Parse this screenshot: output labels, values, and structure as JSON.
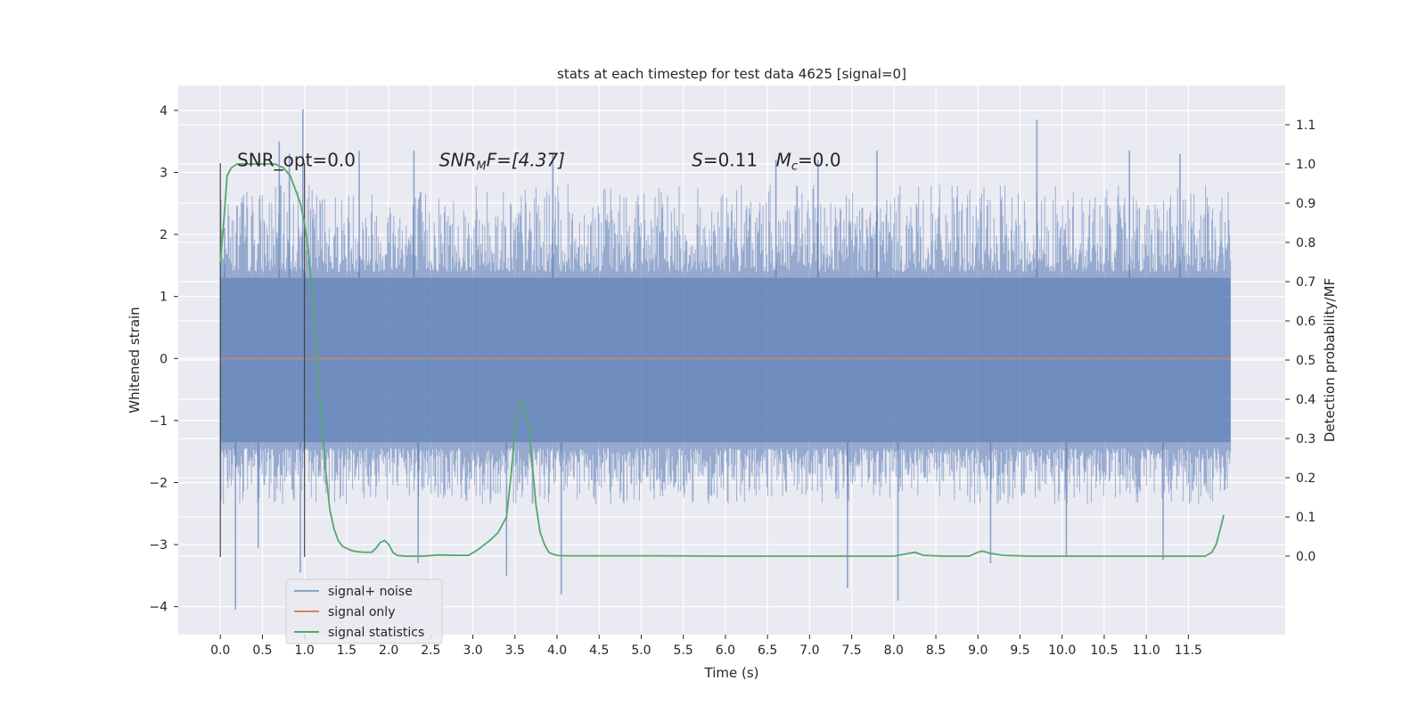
{
  "chart_data": {
    "type": "line",
    "title": "stats at each timestep for test data 4625 [signal=0]",
    "xlabel": "Time (s)",
    "ylabel": "Whitened strain",
    "y2label": "Detection probability/MF",
    "xlim": [
      -0.5,
      12.65
    ],
    "ylim": [
      -4.45,
      4.4
    ],
    "y2lim": [
      -0.2,
      1.2
    ],
    "x_ticks": [
      "0.0",
      "0.5",
      "1.0",
      "1.5",
      "2.0",
      "2.5",
      "3.0",
      "3.5",
      "4.0",
      "4.5",
      "5.0",
      "5.5",
      "6.0",
      "6.5",
      "7.0",
      "7.5",
      "8.0",
      "8.5",
      "9.0",
      "9.5",
      "10.0",
      "10.5",
      "11.0",
      "11.5"
    ],
    "y_ticks": [
      "−4",
      "−3",
      "−2",
      "−1",
      "0",
      "1",
      "2",
      "3",
      "4"
    ],
    "y2_ticks": [
      "0.0",
      "0.1",
      "0.2",
      "0.3",
      "0.4",
      "0.5",
      "0.6",
      "0.7",
      "0.8",
      "0.9",
      "1.0",
      "1.1"
    ],
    "grid": true,
    "legend_position": "lower-left",
    "vlines": [
      {
        "x": 0.0,
        "ymin": -3.2,
        "ymax": 3.15
      },
      {
        "x": 1.0,
        "ymin": -3.2,
        "ymax": 3.15
      }
    ],
    "noise_band": {
      "x_start": 0.0,
      "x_end": 12.0,
      "core_low": -1.35,
      "core_high": 1.3,
      "typical_peak": 2.3,
      "max_peak": 4.0,
      "min_peak": -4.05
    },
    "noise_spikes": [
      {
        "x": 0.05,
        "y": 2.1
      },
      {
        "x": 0.7,
        "y": 3.5
      },
      {
        "x": 0.82,
        "y": 3.3
      },
      {
        "x": 0.98,
        "y": 4.02
      },
      {
        "x": 1.65,
        "y": 3.35
      },
      {
        "x": 2.3,
        "y": 3.35
      },
      {
        "x": 3.95,
        "y": 3.3
      },
      {
        "x": 6.6,
        "y": 3.2
      },
      {
        "x": 7.1,
        "y": 3.2
      },
      {
        "x": 7.8,
        "y": 3.35
      },
      {
        "x": 9.7,
        "y": 3.85
      },
      {
        "x": 10.8,
        "y": 3.35
      },
      {
        "x": 11.4,
        "y": 3.3
      },
      {
        "x": 0.18,
        "y": -4.05
      },
      {
        "x": 0.45,
        "y": -3.05
      },
      {
        "x": 0.95,
        "y": -3.45
      },
      {
        "x": 2.35,
        "y": -3.3
      },
      {
        "x": 3.4,
        "y": -3.5
      },
      {
        "x": 4.05,
        "y": -3.8
      },
      {
        "x": 7.45,
        "y": -3.7
      },
      {
        "x": 8.05,
        "y": -3.9
      },
      {
        "x": 9.15,
        "y": -3.3
      },
      {
        "x": 10.05,
        "y": -3.2
      },
      {
        "x": 11.2,
        "y": -3.25
      }
    ],
    "series": [
      {
        "name": "signal+ noise",
        "color": "#4c72b0",
        "opacity": 0.5
      },
      {
        "name": "signal only",
        "color": "#dd8452",
        "x": [
          0.0,
          12.0
        ],
        "y": [
          0.0,
          0.0
        ]
      },
      {
        "name": "signal statistics",
        "color": "#55a868",
        "axis": "right",
        "x": [
          0.0,
          0.04,
          0.08,
          0.13,
          0.2,
          0.3,
          0.5,
          0.65,
          0.75,
          0.83,
          0.9,
          0.95,
          1.0,
          1.05,
          1.1,
          1.15,
          1.2,
          1.25,
          1.3,
          1.35,
          1.4,
          1.45,
          1.5,
          1.55,
          1.6,
          1.7,
          1.8,
          1.85,
          1.9,
          1.95,
          2.0,
          2.05,
          2.1,
          2.2,
          2.4,
          2.6,
          2.8,
          2.95,
          3.05,
          3.2,
          3.3,
          3.4,
          3.45,
          3.5,
          3.55,
          3.6,
          3.65,
          3.7,
          3.75,
          3.8,
          3.85,
          3.9,
          3.95,
          4.0,
          4.1,
          4.4,
          5.0,
          6.0,
          7.0,
          8.0,
          8.15,
          8.25,
          8.35,
          8.6,
          8.9,
          9.0,
          9.05,
          9.15,
          9.3,
          9.6,
          10.0,
          11.0,
          11.7,
          11.78,
          11.83,
          11.88,
          11.92
        ],
        "y": [
          0.75,
          0.85,
          0.97,
          0.99,
          1.0,
          1.0,
          1.0,
          1.0,
          0.99,
          0.97,
          0.93,
          0.9,
          0.85,
          0.77,
          0.65,
          0.5,
          0.35,
          0.22,
          0.12,
          0.07,
          0.04,
          0.025,
          0.02,
          0.015,
          0.012,
          0.01,
          0.01,
          0.02,
          0.035,
          0.04,
          0.03,
          0.01,
          0.002,
          0.0,
          0.0,
          0.003,
          0.002,
          0.002,
          0.015,
          0.04,
          0.06,
          0.1,
          0.2,
          0.32,
          0.39,
          0.39,
          0.35,
          0.25,
          0.13,
          0.06,
          0.03,
          0.01,
          0.005,
          0.002,
          0.001,
          0.001,
          0.001,
          0.0,
          0.0,
          0.0,
          0.006,
          0.01,
          0.002,
          0.0,
          0.0,
          0.01,
          0.013,
          0.007,
          0.002,
          0.0,
          0.0,
          0.0,
          0.0,
          0.01,
          0.03,
          0.07,
          0.105
        ]
      }
    ],
    "annotations": [
      {
        "id": "snr-opt",
        "prefix": "SNR_opt=0.0",
        "x": 0.2,
        "y": 3.1
      },
      {
        "id": "snr-mf",
        "label": "SNR",
        "sub": "M",
        "after": "F=[4.37]",
        "x": 2.6,
        "y": 3.1
      },
      {
        "id": "s-stat",
        "label": "S",
        "after": "=0.11",
        "x": 5.6,
        "y": 3.1
      },
      {
        "id": "mc-stat",
        "label": "M",
        "sub": "c",
        "after": "=0.0",
        "x": 6.6,
        "y": 3.1
      }
    ]
  }
}
